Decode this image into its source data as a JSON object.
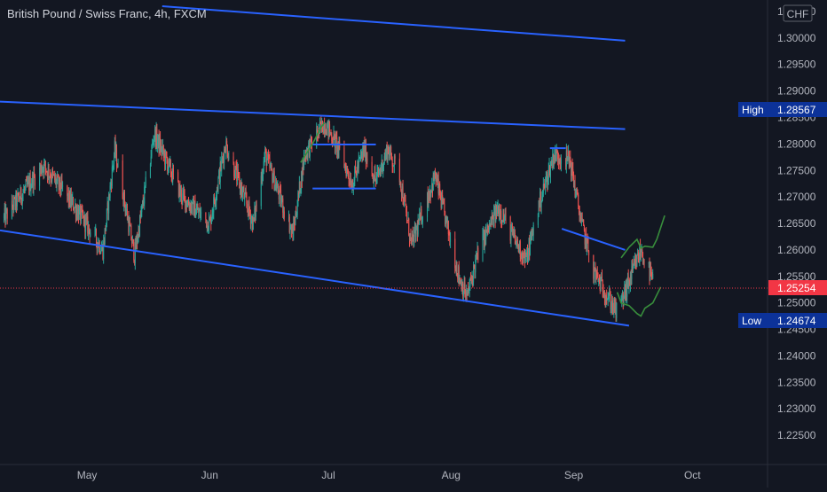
{
  "chart_data": {
    "type": "candlestick",
    "title": "British Pound / Swiss Franc, 4h, FXCM",
    "currency_label": "CHF",
    "x_ticks": [
      "May",
      "Jun",
      "Jul",
      "Aug",
      "Sep",
      "Oct"
    ],
    "x_range": [
      "2020-04-09",
      "2020-10-20"
    ],
    "y_ticks": [
      "1.30500",
      "1.30000",
      "1.29500",
      "1.29000",
      "1.28500",
      "1.28000",
      "1.27500",
      "1.27000",
      "1.26500",
      "1.26000",
      "1.25500",
      "1.25000",
      "1.24500",
      "1.24000",
      "1.23500",
      "1.23000",
      "1.22500"
    ],
    "ylim": [
      1.2195,
      1.3065
    ],
    "grid": false,
    "high": {
      "label": "High",
      "value": "1.28567"
    },
    "low": {
      "label": "Low",
      "value": "1.24674"
    },
    "last_price": {
      "value": "1.25254"
    },
    "colors": {
      "up": "#26a69a",
      "down": "#ef5350",
      "trendline": "#2962ff",
      "projection": "#388e3c",
      "background": "#131722",
      "text": "#b2b5be",
      "label_bg": "#0c3299",
      "last_price_bg": "#f23645"
    },
    "key_levels": [
      {
        "date": "2020-04-10",
        "price": 1.266
      },
      {
        "date": "2020-04-20",
        "price": 1.276
      },
      {
        "date": "2020-04-28",
        "price": 1.268
      },
      {
        "date": "2020-05-05",
        "price": 1.26
      },
      {
        "date": "2020-05-08",
        "price": 1.279
      },
      {
        "date": "2020-05-13",
        "price": 1.259
      },
      {
        "date": "2020-05-18",
        "price": 1.282
      },
      {
        "date": "2020-05-25",
        "price": 1.27
      },
      {
        "date": "2020-06-01",
        "price": 1.265
      },
      {
        "date": "2020-06-05",
        "price": 1.28
      },
      {
        "date": "2020-06-12",
        "price": 1.265
      },
      {
        "date": "2020-06-15",
        "price": 1.278
      },
      {
        "date": "2020-06-22",
        "price": 1.263
      },
      {
        "date": "2020-06-25",
        "price": 1.278
      },
      {
        "date": "2020-06-30",
        "price": 1.284
      },
      {
        "date": "2020-07-03",
        "price": 1.28
      },
      {
        "date": "2020-07-07",
        "price": 1.2725
      },
      {
        "date": "2020-07-10",
        "price": 1.279
      },
      {
        "date": "2020-07-13",
        "price": 1.273
      },
      {
        "date": "2020-07-16",
        "price": 1.279
      },
      {
        "date": "2020-07-19",
        "price": 1.274
      },
      {
        "date": "2020-07-22",
        "price": 1.261
      },
      {
        "date": "2020-07-28",
        "price": 1.274
      },
      {
        "date": "2020-08-03",
        "price": 1.255
      },
      {
        "date": "2020-08-05",
        "price": 1.251
      },
      {
        "date": "2020-08-08",
        "price": 1.26
      },
      {
        "date": "2020-08-13",
        "price": 1.268
      },
      {
        "date": "2020-08-17",
        "price": 1.262
      },
      {
        "date": "2020-08-20",
        "price": 1.258
      },
      {
        "date": "2020-08-23",
        "price": 1.268
      },
      {
        "date": "2020-08-27",
        "price": 1.278
      },
      {
        "date": "2020-08-31",
        "price": 1.277
      },
      {
        "date": "2020-09-03",
        "price": 1.265
      },
      {
        "date": "2020-09-06",
        "price": 1.256
      },
      {
        "date": "2020-09-09",
        "price": 1.252
      },
      {
        "date": "2020-09-12",
        "price": 1.248
      },
      {
        "date": "2020-09-15",
        "price": 1.254
      },
      {
        "date": "2020-09-18",
        "price": 1.26
      },
      {
        "date": "2020-09-21",
        "price": 1.254
      }
    ],
    "trendlines": [
      {
        "name": "upper-resistance-line",
        "from": {
          "date": "2020-05-20",
          "price": 1.306
        },
        "to": {
          "date": "2020-09-14",
          "price": 1.2995
        }
      },
      {
        "name": "channel-top-line",
        "from": {
          "date": "2020-04-09",
          "price": 1.288
        },
        "to": {
          "date": "2020-09-14",
          "price": 1.2828
        }
      },
      {
        "name": "channel-bottom-line",
        "from": {
          "date": "2020-04-09",
          "price": 1.2637
        },
        "to": {
          "date": "2020-09-15",
          "price": 1.2457
        }
      },
      {
        "name": "range-top-line",
        "from": {
          "date": "2020-06-27",
          "price": 1.2799
        },
        "to": {
          "date": "2020-07-13",
          "price": 1.2799
        }
      },
      {
        "name": "range-bottom-line",
        "from": {
          "date": "2020-06-27",
          "price": 1.2716
        },
        "to": {
          "date": "2020-07-13",
          "price": 1.2716
        }
      },
      {
        "name": "peak-top-line",
        "from": {
          "date": "2020-08-26",
          "price": 1.2792
        },
        "to": {
          "date": "2020-08-30",
          "price": 1.2792
        }
      },
      {
        "name": "wedge-top-line",
        "from": {
          "date": "2020-08-29",
          "price": 1.264
        },
        "to": {
          "date": "2020-09-14",
          "price": 1.26
        }
      }
    ],
    "projections": [
      {
        "name": "bullish-projection",
        "points": [
          {
            "date": "2020-09-13",
            "price": 1.2585
          },
          {
            "date": "2020-09-15",
            "price": 1.2605
          },
          {
            "date": "2020-09-17",
            "price": 1.262
          },
          {
            "date": "2020-09-18",
            "price": 1.2603
          },
          {
            "date": "2020-09-19",
            "price": 1.2607
          },
          {
            "date": "2020-09-21",
            "price": 1.2605
          },
          {
            "date": "2020-09-22",
            "price": 1.262
          },
          {
            "date": "2020-09-24",
            "price": 1.2665
          }
        ]
      },
      {
        "name": "bearish-projection",
        "points": [
          {
            "date": "2020-09-12",
            "price": 1.252
          },
          {
            "date": "2020-09-13",
            "price": 1.25
          },
          {
            "date": "2020-09-15",
            "price": 1.2495
          },
          {
            "date": "2020-09-17",
            "price": 1.248
          },
          {
            "date": "2020-09-18",
            "price": 1.2475
          },
          {
            "date": "2020-09-19",
            "price": 1.249
          },
          {
            "date": "2020-09-21",
            "price": 1.25
          },
          {
            "date": "2020-09-23",
            "price": 1.253
          }
        ]
      },
      {
        "name": "june-rise-projection",
        "points": [
          {
            "date": "2020-06-24",
            "price": 1.2765
          },
          {
            "date": "2020-06-27",
            "price": 1.28
          },
          {
            "date": "2020-06-29",
            "price": 1.283
          },
          {
            "date": "2020-06-30",
            "price": 1.284
          }
        ]
      }
    ]
  }
}
